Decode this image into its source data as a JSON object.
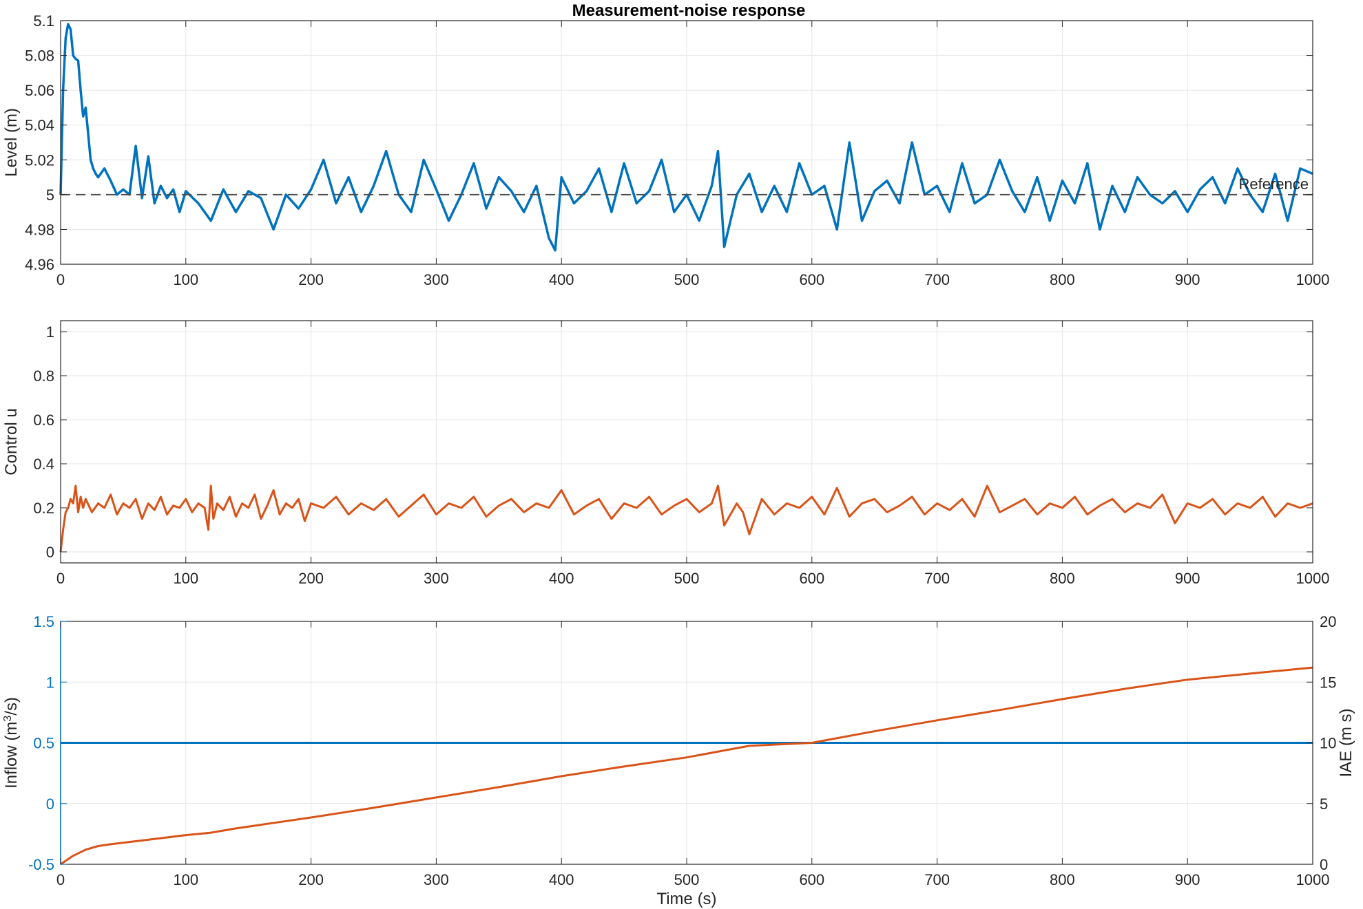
{
  "figure": {
    "title": "Measurement-noise response"
  },
  "chart_data": [
    {
      "type": "line",
      "xlabel": "",
      "ylabel": "Level (m)",
      "xlim": [
        0,
        1000
      ],
      "ylim": [
        4.96,
        5.1
      ],
      "xticks": [
        "0",
        "100",
        "200",
        "300",
        "400",
        "500",
        "600",
        "700",
        "800",
        "900",
        "1000"
      ],
      "yticks": [
        "4.96",
        "4.98",
        "5",
        "5.02",
        "5.04",
        "5.06",
        "5.08",
        "5.1"
      ],
      "grid": true,
      "series": [
        {
          "color": "#0072BD",
          "x": [
            0,
            2,
            4,
            6,
            8,
            10,
            12,
            14,
            16,
            18,
            20,
            22,
            24,
            26,
            28,
            30,
            35,
            40,
            45,
            50,
            55,
            60,
            65,
            70,
            75,
            80,
            85,
            90,
            95,
            100,
            110,
            120,
            130,
            140,
            150,
            160,
            170,
            180,
            190,
            200,
            210,
            220,
            230,
            240,
            250,
            260,
            270,
            280,
            290,
            300,
            310,
            320,
            330,
            340,
            350,
            360,
            370,
            380,
            390,
            395,
            400,
            410,
            420,
            430,
            440,
            450,
            460,
            470,
            480,
            490,
            500,
            510,
            520,
            525,
            530,
            540,
            550,
            560,
            570,
            580,
            590,
            600,
            610,
            620,
            630,
            640,
            650,
            660,
            670,
            680,
            690,
            700,
            710,
            720,
            730,
            740,
            750,
            760,
            770,
            780,
            790,
            800,
            810,
            820,
            830,
            840,
            850,
            860,
            870,
            880,
            890,
            900,
            910,
            920,
            930,
            940,
            950,
            960,
            970,
            980,
            990,
            1000
          ],
          "y": [
            5.0,
            5.06,
            5.09,
            5.098,
            5.095,
            5.08,
            5.078,
            5.077,
            5.06,
            5.045,
            5.05,
            5.035,
            5.02,
            5.015,
            5.012,
            5.01,
            5.015,
            5.008,
            5.0,
            5.003,
            5.0,
            5.028,
            4.998,
            5.022,
            4.995,
            5.005,
            4.998,
            5.003,
            4.99,
            5.002,
            4.995,
            4.985,
            5.003,
            4.99,
            5.002,
            4.998,
            4.98,
            5.0,
            4.992,
            5.003,
            5.02,
            4.995,
            5.01,
            4.99,
            5.005,
            5.025,
            5.0,
            4.99,
            5.02,
            5.003,
            4.985,
            5.0,
            5.018,
            4.992,
            5.01,
            5.002,
            4.99,
            5.005,
            4.975,
            4.968,
            5.01,
            4.995,
            5.002,
            5.015,
            4.99,
            5.018,
            4.995,
            5.002,
            5.02,
            4.99,
            5.0,
            4.985,
            5.005,
            5.025,
            4.97,
            5.0,
            5.012,
            4.99,
            5.005,
            4.99,
            5.018,
            5.0,
            5.005,
            4.98,
            5.03,
            4.985,
            5.002,
            5.008,
            4.995,
            5.03,
            5.0,
            5.005,
            4.99,
            5.018,
            4.995,
            5.0,
            5.02,
            5.002,
            4.99,
            5.01,
            4.985,
            5.008,
            4.995,
            5.018,
            4.98,
            5.005,
            4.99,
            5.01,
            5.0,
            4.995,
            5.002,
            4.99,
            5.003,
            5.01,
            4.995,
            5.015,
            5.0,
            4.99,
            5.012,
            4.985,
            5.015,
            5.012
          ]
        }
      ],
      "reference": {
        "y": 5.0,
        "label": "Reference",
        "color": "#4D4D4D"
      }
    },
    {
      "type": "line",
      "xlabel": "",
      "ylabel": "Control u",
      "xlim": [
        0,
        1000
      ],
      "ylim": [
        -0.05,
        1.05
      ],
      "xticks": [
        "0",
        "100",
        "200",
        "300",
        "400",
        "500",
        "600",
        "700",
        "800",
        "900",
        "1000"
      ],
      "yticks": [
        "0",
        "0.2",
        "0.4",
        "0.6",
        "0.8",
        "1"
      ],
      "grid": true,
      "series": [
        {
          "color": "#D95319",
          "x": [
            0,
            2,
            4,
            6,
            8,
            10,
            12,
            14,
            16,
            18,
            20,
            25,
            30,
            35,
            40,
            45,
            50,
            55,
            60,
            65,
            70,
            75,
            80,
            85,
            90,
            95,
            100,
            105,
            110,
            115,
            118,
            120,
            122,
            125,
            130,
            135,
            140,
            145,
            150,
            155,
            160,
            165,
            170,
            175,
            180,
            185,
            190,
            195,
            200,
            210,
            220,
            230,
            240,
            250,
            260,
            270,
            280,
            290,
            300,
            310,
            320,
            330,
            340,
            350,
            360,
            370,
            380,
            390,
            400,
            410,
            420,
            430,
            440,
            450,
            460,
            470,
            480,
            490,
            500,
            510,
            520,
            525,
            530,
            540,
            545,
            550,
            560,
            570,
            580,
            590,
            600,
            610,
            620,
            630,
            640,
            650,
            660,
            670,
            680,
            690,
            700,
            710,
            720,
            730,
            740,
            750,
            760,
            770,
            780,
            790,
            800,
            810,
            820,
            830,
            840,
            850,
            860,
            870,
            880,
            890,
            900,
            910,
            920,
            930,
            940,
            950,
            960,
            970,
            980,
            990,
            1000
          ],
          "y": [
            0.0,
            0.1,
            0.18,
            0.2,
            0.24,
            0.22,
            0.3,
            0.18,
            0.25,
            0.2,
            0.24,
            0.18,
            0.22,
            0.2,
            0.26,
            0.17,
            0.22,
            0.2,
            0.24,
            0.15,
            0.22,
            0.19,
            0.25,
            0.17,
            0.21,
            0.2,
            0.24,
            0.18,
            0.22,
            0.2,
            0.1,
            0.3,
            0.15,
            0.22,
            0.19,
            0.25,
            0.16,
            0.22,
            0.2,
            0.26,
            0.15,
            0.21,
            0.28,
            0.17,
            0.22,
            0.2,
            0.24,
            0.14,
            0.22,
            0.2,
            0.25,
            0.17,
            0.22,
            0.19,
            0.24,
            0.16,
            0.21,
            0.26,
            0.17,
            0.22,
            0.2,
            0.25,
            0.16,
            0.21,
            0.24,
            0.18,
            0.22,
            0.2,
            0.28,
            0.17,
            0.21,
            0.24,
            0.15,
            0.22,
            0.2,
            0.25,
            0.17,
            0.21,
            0.24,
            0.18,
            0.22,
            0.3,
            0.12,
            0.22,
            0.18,
            0.08,
            0.24,
            0.17,
            0.22,
            0.2,
            0.25,
            0.17,
            0.29,
            0.16,
            0.22,
            0.24,
            0.18,
            0.21,
            0.25,
            0.17,
            0.22,
            0.19,
            0.24,
            0.16,
            0.3,
            0.18,
            0.21,
            0.24,
            0.17,
            0.22,
            0.2,
            0.25,
            0.17,
            0.21,
            0.24,
            0.18,
            0.22,
            0.2,
            0.26,
            0.13,
            0.22,
            0.2,
            0.24,
            0.17,
            0.22,
            0.2,
            0.25,
            0.16,
            0.22,
            0.2,
            0.22
          ]
        }
      ]
    },
    {
      "type": "line",
      "xlabel": "Time (s)",
      "ylabel": "Inflow (m³/s)",
      "ylabel_parts": [
        "Inflow (m",
        "3",
        "/s)"
      ],
      "ylabel_right": "IAE (m s)",
      "xlim": [
        0,
        1000
      ],
      "ylim": [
        -0.5,
        1.5
      ],
      "ylim_right": [
        0,
        20
      ],
      "xticks": [
        "0",
        "100",
        "200",
        "300",
        "400",
        "500",
        "600",
        "700",
        "800",
        "900",
        "1000"
      ],
      "yticks": [
        "-0.5",
        "0",
        "0.5",
        "1",
        "1.5"
      ],
      "yticks_right": [
        "0",
        "5",
        "10",
        "15",
        "20"
      ],
      "grid": true,
      "series": [
        {
          "axis": "left",
          "color": "#0072BD",
          "x": [
            0,
            1000
          ],
          "y": [
            0.5,
            0.5
          ]
        },
        {
          "axis": "right",
          "color": "#D95319",
          "x": [
            0,
            5,
            10,
            20,
            30,
            40,
            60,
            80,
            100,
            120,
            140,
            160,
            180,
            200,
            250,
            300,
            350,
            400,
            450,
            500,
            550,
            600,
            650,
            700,
            750,
            800,
            850,
            900,
            950,
            1000
          ],
          "y": [
            0.0,
            0.35,
            0.7,
            1.2,
            1.5,
            1.65,
            1.9,
            2.15,
            2.4,
            2.6,
            2.95,
            3.25,
            3.55,
            3.85,
            4.65,
            5.5,
            6.35,
            7.25,
            8.05,
            8.8,
            9.75,
            10.0,
            10.95,
            11.85,
            12.7,
            13.6,
            14.45,
            15.2,
            15.7,
            16.2
          ]
        }
      ]
    }
  ]
}
